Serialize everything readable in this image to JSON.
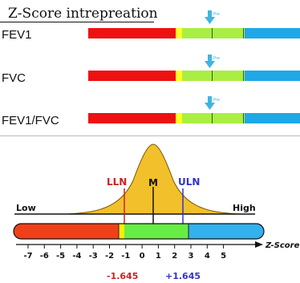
{
  "top": {
    "title": "Z-Score intrepreation",
    "rows": [
      {
        "label": "FEV1",
        "marker_text": "Pre"
      },
      {
        "label": "FVC",
        "marker_text": "Pre"
      },
      {
        "label": "FEV1/FVC",
        "marker_text": "Pre"
      }
    ],
    "colors": {
      "red": "#ee1111",
      "yellow": "#ffff22",
      "green": "#aaee44",
      "blue": "#1fa8e8",
      "marker": "#3fb6e0"
    }
  },
  "bottom": {
    "low_label": "Low",
    "high_label": "High",
    "lln_label": "LLN",
    "mean_label": "M",
    "uln_label": "ULN",
    "lln_value": "-1.645",
    "uln_value": "+1.645",
    "axis_label": "Z-Score",
    "ticks": [
      "-7",
      "-6",
      "-5",
      "-4",
      "-3",
      "-2",
      "-1",
      "0",
      "1",
      "2",
      "3",
      "4",
      "5"
    ],
    "colors": {
      "red": "#f0401a",
      "yellow": "#ffee00",
      "green": "#66ee44",
      "blue": "#33b0ee",
      "lln": "#cc2222",
      "uln": "#3333cc",
      "curve": "#f2c02a"
    }
  }
}
